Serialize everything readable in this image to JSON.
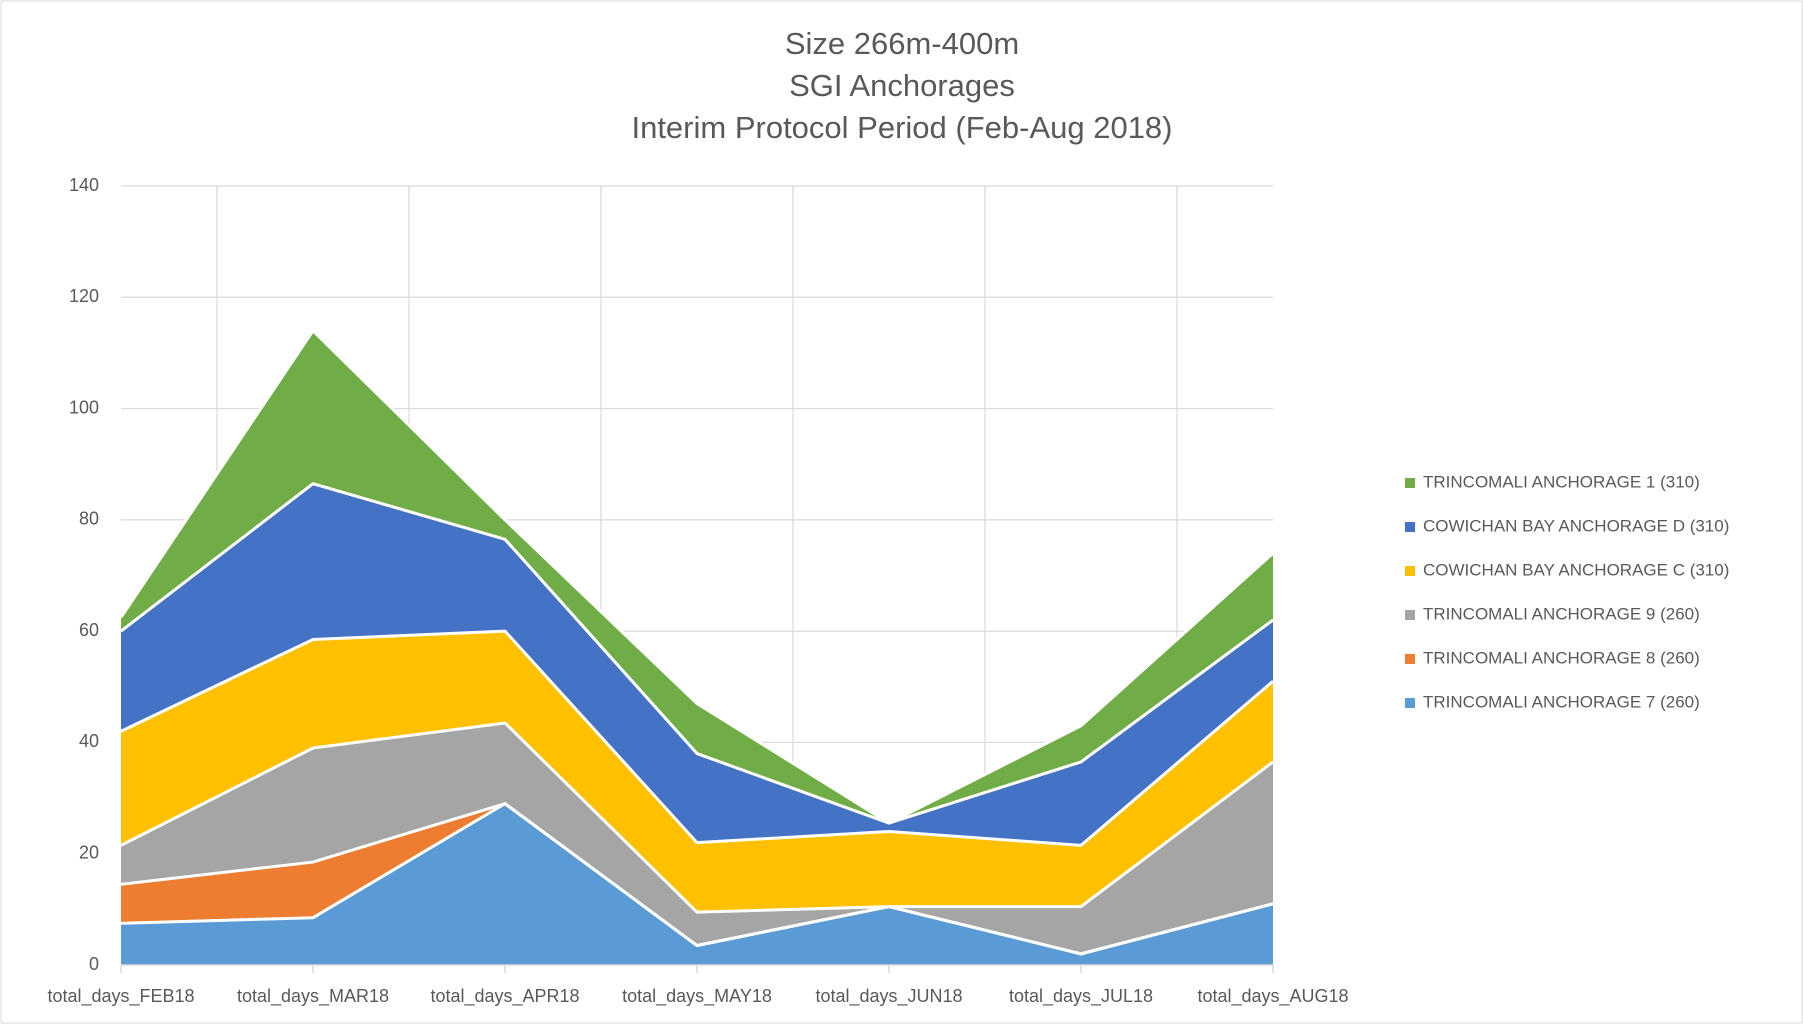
{
  "chart_data": {
    "type": "stacked_area",
    "title": [
      "Size 266m-400m",
      "SGI Anchorages",
      "Interim Protocol Period (Feb-Aug 2018)"
    ],
    "categories": [
      "total_days_FEB18",
      "total_days_MAR18",
      "total_days_APR18",
      "total_days_MAY18",
      "total_days_JUN18",
      "total_days_JUL18",
      "total_days_AUG18"
    ],
    "series": [
      {
        "name": "TRINCOMALI ANCHORAGE 7 (260)",
        "color": "#5b9bd5",
        "values": [
          7.5,
          8.5,
          29,
          3.5,
          10.5,
          2,
          11
        ]
      },
      {
        "name": "TRINCOMALI ANCHORAGE 8 (260)",
        "color": "#ed7d31",
        "values": [
          7,
          10,
          0,
          0,
          0,
          0,
          0
        ]
      },
      {
        "name": "TRINCOMALI ANCHORAGE 9 (260)",
        "color": "#a5a5a5",
        "values": [
          7,
          20.5,
          14.5,
          6,
          0,
          8.5,
          25.5
        ]
      },
      {
        "name": "COWICHAN BAY ANCHORAGE C (310)",
        "color": "#ffc000",
        "values": [
          20.5,
          19.5,
          16.5,
          12.5,
          13.5,
          11,
          14.5
        ]
      },
      {
        "name": "COWICHAN BAY ANCHORAGE D (310)",
        "color": "#4472c4",
        "values": [
          18,
          28,
          16.5,
          16,
          1.5,
          15,
          11
        ]
      },
      {
        "name": "TRINCOMALI ANCHORAGE 1 (310)",
        "color": "#70ad47",
        "values": [
          2.5,
          27.5,
          3.5,
          9,
          0,
          6.5,
          12
        ]
      }
    ],
    "ylim": [
      0,
      140
    ],
    "yticks": [
      0,
      20,
      40,
      60,
      80,
      100,
      120,
      140
    ],
    "grid": true,
    "legend": "right"
  }
}
